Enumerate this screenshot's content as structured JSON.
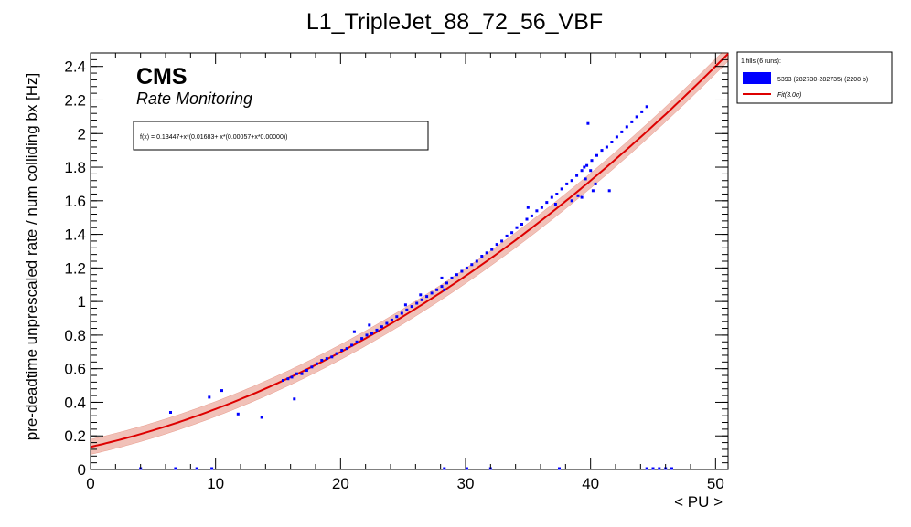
{
  "colors": {
    "data_points": "#0000ff",
    "fit_line": "#dd0000",
    "band": "#cc2200",
    "frame": "#000000"
  },
  "chart_data": {
    "type": "scatter",
    "title": "L1_TripleJet_88_72_56_VBF",
    "xlabel": "< PU >",
    "ylabel": "pre-deadtime unprescaled rate / num colliding bx [Hz]",
    "xlim": [
      0,
      51
    ],
    "ylim": [
      0,
      2.48
    ],
    "x_ticks": [
      0,
      10,
      20,
      30,
      40,
      50
    ],
    "y_ticks": [
      0,
      0.2,
      0.4,
      0.6,
      0.8,
      1,
      1.2,
      1.4,
      1.6,
      1.8,
      2,
      2.2,
      2.4
    ],
    "x_tick_labels": [
      "0",
      "10",
      "20",
      "30",
      "40",
      "50"
    ],
    "y_tick_labels": [
      "0",
      "0.2",
      "0.4",
      "0.6",
      "0.8",
      "1",
      "1.2",
      "1.4",
      "1.6",
      "1.8",
      "2",
      "2.2",
      "2.4"
    ],
    "grid": "off",
    "legend_position": "top-right, outside plot",
    "cms_label": "CMS",
    "cms_sublabel": "Rate Monitoring",
    "fit_formula": "f(x) = 0.13447+x*(0.01683+ x*(0.00057+x*0.00000))",
    "fit": {
      "coefficients": [
        0.13447,
        0.01683,
        0.00057,
        0.0
      ],
      "band_halfwidth": 0.045
    },
    "legend": {
      "header": "1 fills (6 runs):",
      "entries": [
        {
          "label": "5393 (282730-282735) (2208 b)",
          "kind": "box"
        },
        {
          "label": "Fit(3.0σ)",
          "kind": "line"
        }
      ]
    },
    "series": [
      {
        "name": "5393 (282730-282735) (2208 b)",
        "points": [
          [
            6.4,
            0.34
          ],
          [
            9.5,
            0.43
          ],
          [
            10.5,
            0.47
          ],
          [
            11.8,
            0.33
          ],
          [
            13.7,
            0.31
          ],
          [
            16.3,
            0.42
          ],
          [
            15.4,
            0.53
          ],
          [
            15.8,
            0.54
          ],
          [
            16.1,
            0.55
          ],
          [
            16.5,
            0.57
          ],
          [
            16.9,
            0.57
          ],
          [
            17.3,
            0.59
          ],
          [
            17.7,
            0.61
          ],
          [
            18.1,
            0.63
          ],
          [
            18.5,
            0.65
          ],
          [
            18.9,
            0.66
          ],
          [
            19.3,
            0.67
          ],
          [
            19.7,
            0.69
          ],
          [
            20.1,
            0.71
          ],
          [
            20.5,
            0.72
          ],
          [
            20.9,
            0.74
          ],
          [
            21.3,
            0.76
          ],
          [
            21.7,
            0.78
          ],
          [
            22.1,
            0.8
          ],
          [
            22.5,
            0.81
          ],
          [
            22.9,
            0.83
          ],
          [
            23.3,
            0.85
          ],
          [
            23.7,
            0.87
          ],
          [
            24.1,
            0.89
          ],
          [
            24.5,
            0.91
          ],
          [
            24.9,
            0.93
          ],
          [
            25.3,
            0.95
          ],
          [
            25.7,
            0.97
          ],
          [
            26.1,
            0.99
          ],
          [
            26.5,
            1.01
          ],
          [
            26.9,
            1.03
          ],
          [
            27.3,
            1.05
          ],
          [
            27.7,
            1.07
          ],
          [
            28.1,
            1.09
          ],
          [
            28.5,
            1.11
          ],
          [
            28.9,
            1.14
          ],
          [
            29.3,
            1.16
          ],
          [
            29.7,
            1.18
          ],
          [
            30.1,
            1.2
          ],
          [
            30.5,
            1.22
          ],
          [
            30.9,
            1.24
          ],
          [
            31.3,
            1.27
          ],
          [
            31.7,
            1.29
          ],
          [
            32.1,
            1.31
          ],
          [
            32.5,
            1.34
          ],
          [
            32.9,
            1.36
          ],
          [
            33.3,
            1.39
          ],
          [
            33.7,
            1.41
          ],
          [
            34.1,
            1.44
          ],
          [
            34.5,
            1.46
          ],
          [
            34.9,
            1.49
          ],
          [
            35.3,
            1.51
          ],
          [
            35.7,
            1.54
          ],
          [
            36.1,
            1.56
          ],
          [
            36.5,
            1.59
          ],
          [
            36.9,
            1.62
          ],
          [
            37.3,
            1.64
          ],
          [
            37.7,
            1.67
          ],
          [
            38.1,
            1.7
          ],
          [
            38.5,
            1.72
          ],
          [
            38.9,
            1.75
          ],
          [
            39.3,
            1.78
          ],
          [
            39.7,
            1.81
          ],
          [
            40.1,
            1.84
          ],
          [
            40.5,
            1.87
          ],
          [
            40.9,
            1.9
          ],
          [
            41.3,
            1.92
          ],
          [
            41.7,
            1.95
          ],
          [
            42.1,
            1.98
          ],
          [
            42.5,
            2.01
          ],
          [
            42.9,
            2.04
          ],
          [
            43.3,
            2.07
          ],
          [
            43.7,
            2.1
          ],
          [
            44.1,
            2.13
          ],
          [
            44.5,
            2.16
          ],
          [
            21.1,
            0.82
          ],
          [
            22.3,
            0.86
          ],
          [
            25.2,
            0.98
          ],
          [
            26.4,
            1.04
          ],
          [
            28.1,
            1.14
          ],
          [
            28.3,
            1.07
          ],
          [
            35.0,
            1.56
          ],
          [
            37.2,
            1.58
          ],
          [
            38.5,
            1.6
          ],
          [
            39.0,
            1.63
          ],
          [
            39.6,
            1.73
          ],
          [
            39.8,
            2.06
          ],
          [
            40.2,
            1.66
          ],
          [
            41.5,
            1.66
          ],
          [
            40.0,
            1.78
          ],
          [
            39.5,
            1.8
          ],
          [
            39.3,
            1.62
          ],
          [
            40.4,
            1.7
          ],
          [
            4.0,
            0.0
          ],
          [
            6.8,
            0.0
          ],
          [
            8.5,
            0.0
          ],
          [
            9.7,
            0.0
          ],
          [
            28.3,
            0.0
          ],
          [
            30.1,
            0.0
          ],
          [
            32.0,
            0.0
          ],
          [
            37.5,
            0.0
          ],
          [
            44.5,
            0.0
          ],
          [
            45.0,
            0.0
          ],
          [
            45.5,
            0.0
          ],
          [
            46.0,
            0.0
          ],
          [
            46.5,
            0.0
          ]
        ]
      }
    ]
  }
}
